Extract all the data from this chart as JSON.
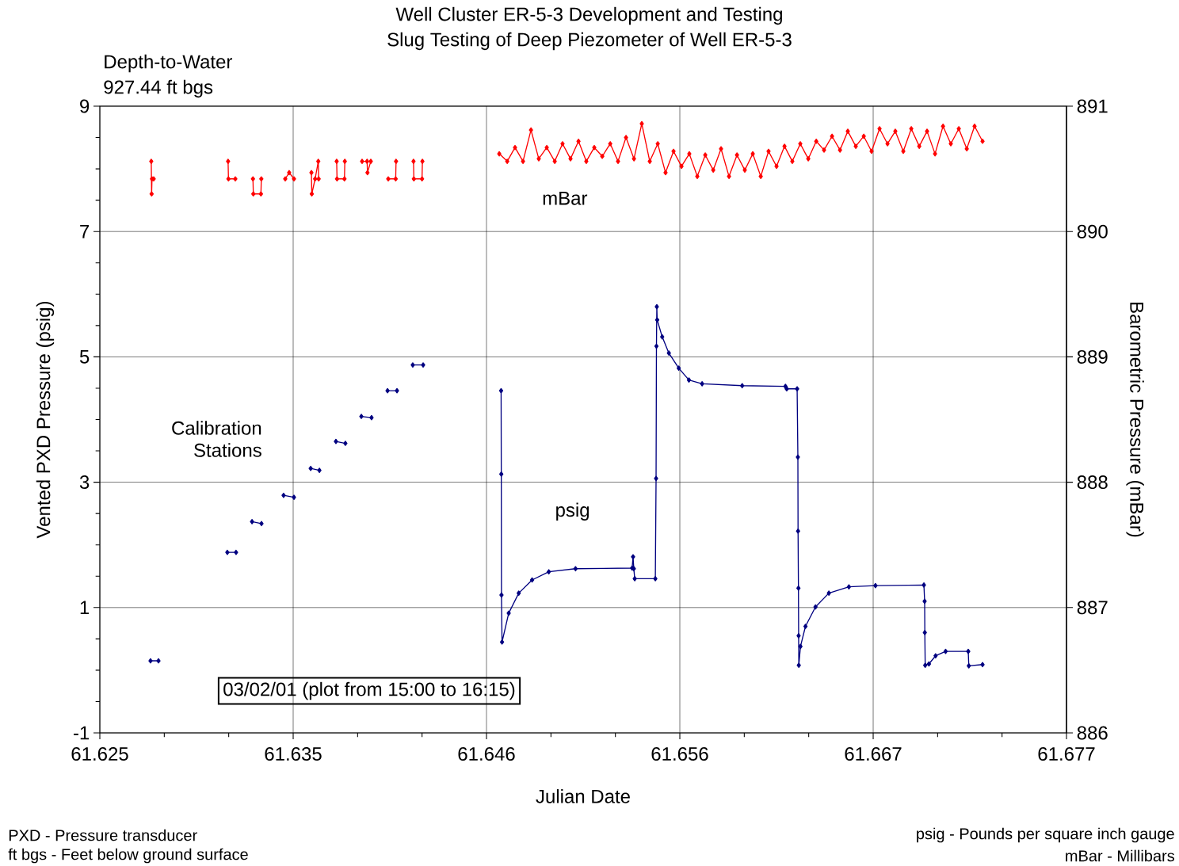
{
  "chart_data": {
    "type": "line",
    "title": "Well Cluster ER-5-3 Development and Testing",
    "subtitle": "Slug Testing of Deep Piezometer of Well ER-5-3",
    "xlabel": "Julian Date",
    "ylabel": "Vented PXD Pressure (psig)",
    "y2label": "Barometric Pressure (mBar)",
    "xlim": [
      61.625,
      61.677083
    ],
    "xticks": [
      61.625,
      {
        "value": 61.635417,
        "label": "61.635"
      },
      {
        "value": 61.645833,
        "label": "61.646"
      },
      {
        "value": 61.65625,
        "label": "61.656"
      },
      {
        "value": 61.666667,
        "label": "61.667"
      },
      {
        "value": 61.677083,
        "label": "61.677"
      },
      {
        "value": 61.628472,
        "label": null
      },
      {
        "value": 61.631944,
        "label": null
      },
      {
        "value": 61.638889,
        "label": null
      },
      {
        "value": 61.642361,
        "label": null
      },
      {
        "value": 61.649306,
        "label": null
      },
      {
        "value": 61.652778,
        "label": null
      },
      {
        "value": 61.659722,
        "label": null
      },
      {
        "value": 61.663194,
        "label": null
      },
      {
        "value": 61.670139,
        "label": null
      },
      {
        "value": 61.673611,
        "label": null
      }
    ],
    "ylim": [
      -1,
      9
    ],
    "yticks": [
      -1,
      1,
      3,
      5,
      7,
      9,
      {
        "value": -0.5,
        "label": null
      },
      {
        "value": 0,
        "label": null
      },
      {
        "value": 0.5,
        "label": null
      },
      {
        "value": 1.5,
        "label": null
      },
      {
        "value": 2,
        "label": null
      },
      {
        "value": 2.5,
        "label": null
      },
      {
        "value": 3.5,
        "label": null
      },
      {
        "value": 4,
        "label": null
      },
      {
        "value": 4.5,
        "label": null
      },
      {
        "value": 5.5,
        "label": null
      },
      {
        "value": 6,
        "label": null
      },
      {
        "value": 6.5,
        "label": null
      },
      {
        "value": 7.5,
        "label": null
      },
      {
        "value": 8,
        "label": null
      },
      {
        "value": 8.5,
        "label": null
      }
    ],
    "y2lim": [
      886,
      891
    ],
    "y2ticks": [
      886,
      887,
      888,
      889,
      890,
      891
    ],
    "grid": true,
    "marker": "diamond",
    "series": [
      {
        "name": "psig",
        "color": "#000080",
        "x": [
          61.62773,
          61.62816,
          61.63,
          61.63187,
          61.63234,
          61.6328,
          61.6332,
          61.63371,
          61.6343,
          61.6349,
          61.63546,
          61.6359,
          61.63636,
          61.63683,
          61.6373,
          61.63772,
          61.63823,
          61.6387,
          61.63909,
          61.63964,
          61.6401,
          61.6405,
          61.64101,
          61.6414,
          61.64186,
          61.64242,
          61.6445,
          61.64662,
          61.64663,
          61.64664,
          61.64667,
          61.64703,
          61.64757,
          61.64829,
          61.64919,
          61.65063,
          61.65368,
          61.65373,
          61.65377,
          61.65382,
          61.65493,
          61.65497,
          61.65499,
          61.65501,
          61.65503,
          61.6553,
          61.65566,
          61.65619,
          61.65674,
          61.65745,
          61.65961,
          61.66194,
          61.66201,
          61.66257,
          61.66261,
          61.66262,
          61.66264,
          61.66265,
          61.66266,
          61.66275,
          61.66302,
          61.66356,
          61.66428,
          61.66536,
          61.66679,
          61.6694,
          61.66944,
          61.66945,
          61.66947,
          61.66967,
          61.67003,
          61.67057,
          61.67179,
          61.67182,
          61.67256
        ],
        "values": [
          0.15,
          0.15,
          null,
          1.88,
          1.88,
          null,
          2.37,
          2.34,
          null,
          2.79,
          2.76,
          null,
          3.22,
          3.19,
          null,
          3.65,
          3.62,
          null,
          4.05,
          4.03,
          null,
          4.46,
          4.46,
          null,
          4.87,
          4.87,
          null,
          4.46,
          3.13,
          1.2,
          0.45,
          0.91,
          1.23,
          1.44,
          1.57,
          1.62,
          1.63,
          1.81,
          1.62,
          1.46,
          1.46,
          3.06,
          5.17,
          5.8,
          5.59,
          5.32,
          5.06,
          4.82,
          4.63,
          4.57,
          4.54,
          4.53,
          4.49,
          4.49,
          3.4,
          2.22,
          1.31,
          0.55,
          0.08,
          0.38,
          0.7,
          1.01,
          1.23,
          1.33,
          1.35,
          1.36,
          1.1,
          0.6,
          0.08,
          0.1,
          0.23,
          0.3,
          0.3,
          0.07,
          0.09
        ]
      },
      {
        "name": "mBar",
        "color": "#ff0000",
        "axis": "y2",
        "x": [
          61.62777,
          61.62779,
          61.62781,
          61.6279,
          61.63,
          61.63191,
          61.63193,
          61.6323,
          61.6328,
          61.63325,
          61.63327,
          61.63368,
          61.6337,
          61.6343,
          61.63499,
          61.6352,
          61.63546,
          61.6359,
          61.6364,
          61.63642,
          61.6366,
          61.63677,
          61.63679,
          61.6373,
          61.63776,
          61.63778,
          61.63818,
          61.6382,
          61.6387,
          61.63913,
          61.6394,
          61.63942,
          61.6396,
          61.6401,
          61.64054,
          61.64094,
          61.64096,
          61.6414,
          61.6419,
          61.64192,
          61.64236,
          61.64238,
          61.6445,
          61.64652,
          61.64695,
          61.64737,
          61.6478,
          61.64823,
          61.64865,
          61.64908,
          61.64951,
          61.64993,
          61.65036,
          61.65079,
          61.65121,
          61.65164,
          61.65207,
          61.6525,
          61.65292,
          61.65335,
          61.65378,
          61.6542,
          61.65463,
          61.65506,
          61.65548,
          61.65591,
          61.65634,
          61.65676,
          61.65719,
          61.65762,
          61.65805,
          61.65847,
          61.6589,
          61.65933,
          61.65975,
          61.66018,
          61.66061,
          61.66103,
          61.66146,
          61.66189,
          61.66231,
          61.66274,
          61.66317,
          61.6636,
          61.66402,
          61.66445,
          61.66488,
          61.6653,
          61.66573,
          61.66616,
          61.66658,
          61.66701,
          61.66744,
          61.66786,
          61.66829,
          61.66872,
          61.66915,
          61.66957,
          61.67,
          61.67043,
          61.67085,
          61.67128,
          61.67171,
          61.67213,
          61.67256
        ],
        "values": [
          890.56,
          890.3,
          890.42,
          890.42,
          null,
          890.56,
          890.42,
          890.42,
          null,
          890.42,
          890.3,
          890.3,
          890.42,
          null,
          890.42,
          890.47,
          890.42,
          null,
          890.47,
          890.3,
          890.42,
          890.56,
          890.42,
          null,
          890.56,
          890.42,
          890.42,
          890.56,
          null,
          890.56,
          890.56,
          890.47,
          890.56,
          null,
          890.42,
          890.42,
          890.56,
          null,
          890.56,
          890.42,
          890.42,
          890.56,
          null,
          890.62,
          890.56,
          890.67,
          890.56,
          890.81,
          890.58,
          890.67,
          890.56,
          890.7,
          890.58,
          890.72,
          890.56,
          890.67,
          890.6,
          890.7,
          890.56,
          890.75,
          890.58,
          890.86,
          890.56,
          890.7,
          890.47,
          890.64,
          890.52,
          890.62,
          890.44,
          890.61,
          890.49,
          890.66,
          890.44,
          890.61,
          890.49,
          890.62,
          890.44,
          890.64,
          890.52,
          890.68,
          890.56,
          890.7,
          890.58,
          890.72,
          890.65,
          890.76,
          890.65,
          890.8,
          890.68,
          890.76,
          890.64,
          890.82,
          890.7,
          890.8,
          890.64,
          890.82,
          890.68,
          890.8,
          890.62,
          890.84,
          890.7,
          890.82,
          890.66,
          890.84,
          890.72
        ]
      }
    ],
    "annotations": [
      "Depth-to-Water",
      "927.44 ft bgs",
      "Calibration Stations",
      "03/02/01 (plot from 15:00 to 16:15)",
      "PXD - Pressure transducer",
      "ft bgs - Feet below ground surface",
      "psig - Pounds per square inch gauge",
      "mBar - Millibars"
    ]
  }
}
